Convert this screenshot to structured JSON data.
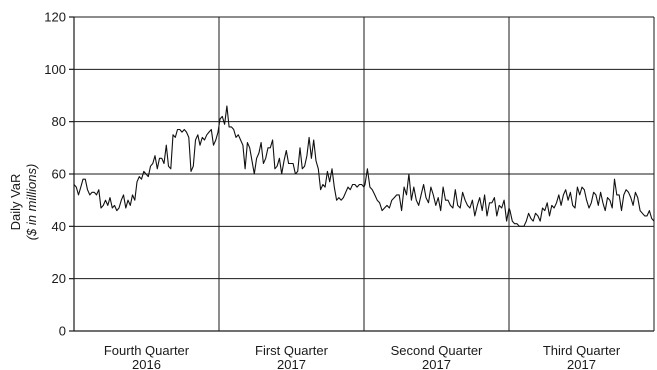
{
  "chart_data": {
    "type": "line",
    "title": "",
    "xlabel": "",
    "ylabel": "Daily VaR",
    "ylabel_sub": "($ in millions)",
    "ylim": [
      0,
      120
    ],
    "yticks": [
      0,
      20,
      40,
      60,
      80,
      100,
      120
    ],
    "grid": true,
    "categories": [
      {
        "line1": "Fourth Quarter",
        "line2": "2016"
      },
      {
        "line1": "First Quarter",
        "line2": "2017"
      },
      {
        "line1": "Second Quarter",
        "line2": "2017"
      },
      {
        "line1": "Third Quarter",
        "line2": "2017"
      }
    ],
    "series": [
      {
        "name": "",
        "color": "#111111",
        "values": [
          [
            56,
            55,
            52,
            55,
            58,
            58,
            54,
            52,
            53,
            53,
            52,
            54,
            47,
            48,
            50,
            48,
            51,
            47,
            48,
            46,
            47,
            50,
            52,
            47,
            50,
            48,
            52,
            50,
            57,
            59,
            58,
            61,
            60,
            59,
            63,
            64,
            67,
            62,
            66,
            66,
            64,
            71,
            63,
            62,
            75,
            74,
            77,
            77,
            76,
            77,
            76,
            74,
            61,
            63,
            73,
            75,
            71,
            74,
            73,
            75,
            76,
            77,
            71,
            73,
            76
          ],
          [
            81,
            82,
            79,
            86,
            78,
            78,
            77,
            74,
            75,
            73,
            71,
            62,
            72,
            70,
            65,
            60,
            66,
            68,
            72,
            64,
            66,
            70,
            70,
            73,
            62,
            63,
            66,
            60,
            65,
            69,
            64,
            64,
            64,
            60,
            61,
            70,
            62,
            63,
            67,
            74,
            66,
            73,
            65,
            62,
            54,
            56,
            55,
            61,
            57,
            62,
            55,
            50,
            51,
            50,
            51,
            53,
            55,
            54,
            56,
            56,
            55,
            56,
            56,
            55
          ],
          [
            56,
            62,
            55,
            54,
            52,
            50,
            49,
            46,
            47,
            48,
            47,
            50,
            51,
            52,
            52,
            46,
            55,
            52,
            60,
            50,
            55,
            50,
            48,
            52,
            56,
            51,
            49,
            55,
            52,
            48,
            51,
            46,
            55,
            50,
            50,
            48,
            47,
            54,
            48,
            47,
            53,
            50,
            48,
            47,
            50,
            44,
            48,
            51,
            46,
            52,
            44,
            49,
            49,
            51,
            44,
            48,
            47,
            50,
            42,
            47
          ],
          [
            46,
            42,
            41,
            41,
            40,
            40,
            40,
            42,
            45,
            43,
            42,
            45,
            44,
            42,
            47,
            46,
            49,
            44,
            48,
            47,
            49,
            52,
            48,
            52,
            54,
            50,
            53,
            48,
            47,
            55,
            52,
            55,
            54,
            50,
            47,
            49,
            53,
            52,
            48,
            53,
            49,
            46,
            51,
            50,
            47,
            58,
            52,
            52,
            46,
            52,
            54,
            53,
            51,
            48,
            53,
            51,
            46,
            45,
            44,
            44,
            46,
            43,
            42
          ]
        ]
      }
    ]
  }
}
